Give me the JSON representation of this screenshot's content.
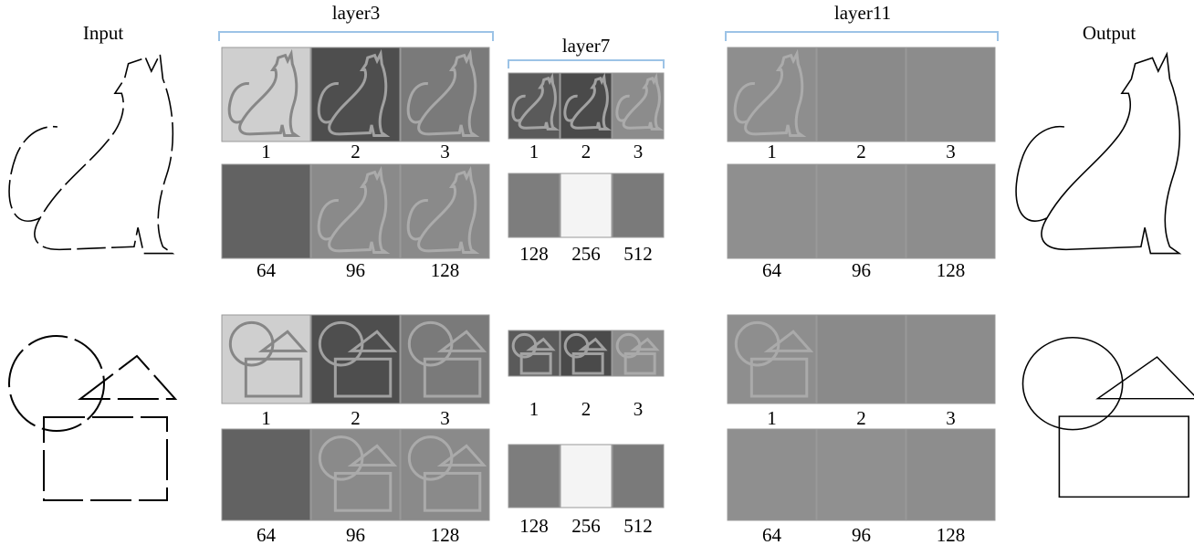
{
  "headers": {
    "input": "Input",
    "layer3": "layer3",
    "layer7": "layer7",
    "layer11": "layer11",
    "output": "Output"
  },
  "examples": [
    {
      "layer3": {
        "top": [
          "1",
          "2",
          "3"
        ],
        "bottom": [
          "64",
          "96",
          "128"
        ]
      },
      "layer7": {
        "top": [
          "1",
          "2",
          "3"
        ],
        "bottom": [
          "128",
          "256",
          "512"
        ]
      },
      "layer11": {
        "top": [
          "1",
          "2",
          "3"
        ],
        "bottom": [
          "64",
          "96",
          "128"
        ]
      }
    },
    {
      "layer3": {
        "top": [
          "1",
          "2",
          "3"
        ],
        "bottom": [
          "64",
          "96",
          "128"
        ]
      },
      "layer7": {
        "top": [
          "1",
          "2",
          "3"
        ],
        "bottom": [
          "128",
          "256",
          "512"
        ]
      },
      "layer11": {
        "top": [
          "1",
          "2",
          "3"
        ],
        "bottom": [
          "64",
          "96",
          "128"
        ]
      }
    }
  ]
}
